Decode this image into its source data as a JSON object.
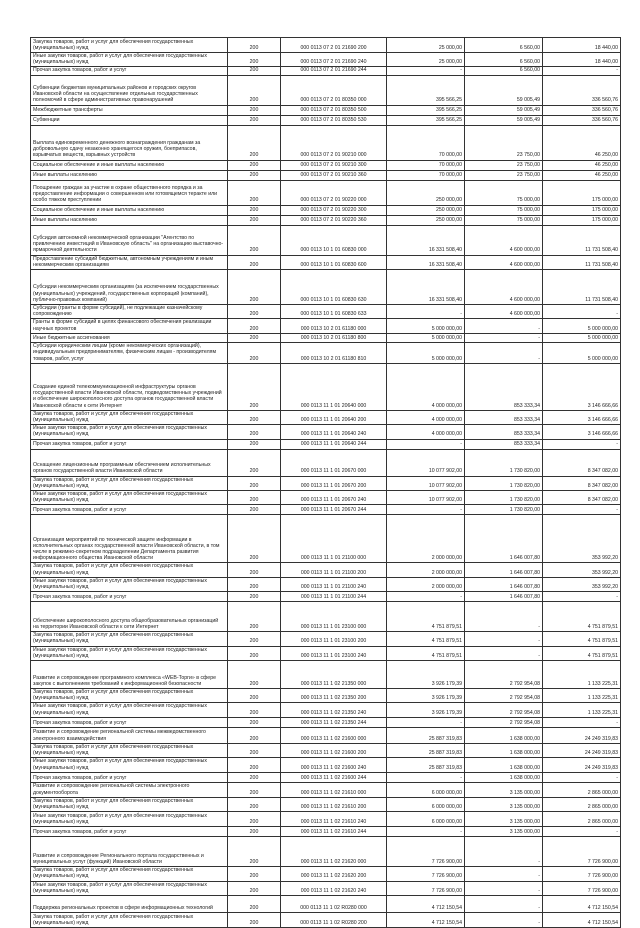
{
  "table": {
    "rows": [
      {
        "desc": "Закупка товаров, работ и услуг для обеспечения государственных (муниципальных) нужд",
        "code": "200",
        "kbk": "000 0113 07 2 01 21690 200",
        "v1": "25 000,00",
        "v2": "6 560,00",
        "v3": "18 440,00"
      },
      {
        "desc": "Иные закупки товаров, работ и услуг для обеспечения государственных (муниципальных) нужд",
        "code": "200",
        "kbk": "000 0113 07 2 01 21690 240",
        "v1": "25 000,00",
        "v2": "6 560,00",
        "v3": "18 440,00"
      },
      {
        "desc": "Прочая закупка товаров, работ и услуг",
        "code": "200",
        "kbk": "000 0113 07 2 01 21690 244",
        "v1": "-",
        "v2": "6 560,00",
        "v3": "-"
      },
      {
        "desc": "Субвенции бюджетам муниципальных районов и городских округов Ивановской области на осуществление отдельных государственных полномочий в сфере административных правонарушений",
        "code": "200",
        "kbk": "000 0113 07 2 01 80350 000",
        "v1": "395 566,25",
        "v2": "59 005,49",
        "v3": "336 560,76"
      },
      {
        "desc": "Межбюджетные трансферты",
        "code": "200",
        "kbk": "000 0113 07 2 01 80350 500",
        "v1": "395 566,25",
        "v2": "59 005,49",
        "v3": "336 560,76"
      },
      {
        "desc": "Субвенции",
        "code": "200",
        "kbk": "000 0113 07 2 01 80350 530",
        "v1": "395 566,25",
        "v2": "59 005,49",
        "v3": "336 560,76"
      },
      {
        "desc": "Выплата единовременного денежного вознаграждения гражданам за добровольную сдачу незаконно хранящегося оружия, боеприпасов, взрывчатых веществ, взрывных устройств",
        "code": "200",
        "kbk": "000 0113 07 2 01 90210 000",
        "v1": "70 000,00",
        "v2": "23 750,00",
        "v3": "46 250,00"
      },
      {
        "desc": "Социальное обеспечение и иные выплаты населению",
        "code": "200",
        "kbk": "000 0113 07 2 01 90210 300",
        "v1": "70 000,00",
        "v2": "23 750,00",
        "v3": "46 250,00"
      },
      {
        "desc": "Иные выплаты населению",
        "code": "200",
        "kbk": "000 0113 07 2 01 90210 360",
        "v1": "70 000,00",
        "v2": "23 750,00",
        "v3": "46 250,00"
      },
      {
        "desc": "Поощрение граждан за участие в охране общественного порядка и за предоставление информации о совершенном или готовящемся теракте или особо тяжком преступлении",
        "code": "200",
        "kbk": "000 0113 07 2 01 90220 000",
        "v1": "250 000,00",
        "v2": "75 000,00",
        "v3": "175 000,00"
      },
      {
        "desc": "Социальное обеспечение и иные выплаты населению",
        "code": "200",
        "kbk": "000 0113 07 2 01 90220 300",
        "v1": "250 000,00",
        "v2": "75 000,00",
        "v3": "175 000,00"
      },
      {
        "desc": "Иные выплаты населению",
        "code": "200",
        "kbk": "000 0113 07 2 01 90220 360",
        "v1": "250 000,00",
        "v2": "75 000,00",
        "v3": "175 000,00"
      },
      {
        "desc": "Субсидия автономной некоммерческой организации \"Агентство по привлечению инвестиций в Ивановскую область\" на организацию выставочно-ярмарочной деятельности",
        "code": "200",
        "kbk": "000 0113 10 1 01 60830 000",
        "v1": "16 331 508,40",
        "v2": "4 600 000,00",
        "v3": "11 731 508,40"
      },
      {
        "desc": "Предоставление субсидий бюджетным, автономным учреждениям и иным некоммерческим организациям",
        "code": "200",
        "kbk": "000 0113 10 1 01 60830 600",
        "v1": "16 331 508,40",
        "v2": "4 600 000,00",
        "v3": "11 731 508,40"
      },
      {
        "desc": "Субсидии некоммерческим организациям (за исключением государственных (муниципальных) учреждений, государственных корпораций (компаний), публично-правовых компаний)",
        "code": "200",
        "kbk": "000 0113 10 1 01 60830 630",
        "v1": "16 331 508,40",
        "v2": "4 600 000,00",
        "v3": "11 731 508,40"
      },
      {
        "desc": "Субсидии (гранты в форме субсидий), не подлежащие казначейскому сопровождению",
        "code": "200",
        "kbk": "000 0113 10 1 01 60830 633",
        "v1": "-",
        "v2": "4 600 000,00",
        "v3": "-"
      },
      {
        "desc": "Гранты в форме субсидий в целях финансового обеспечения реализации научных проектов",
        "code": "200",
        "kbk": "000 0113 10 2 01 61180 000",
        "v1": "5 000 000,00",
        "v2": "-",
        "v3": "5 000 000,00"
      },
      {
        "desc": "Иные бюджетные ассигнования",
        "code": "200",
        "kbk": "000 0113 10 2 01 61180 800",
        "v1": "5 000 000,00",
        "v2": "-",
        "v3": "5 000 000,00"
      },
      {
        "desc": "Субсидии юридическим лицам (кроме некоммерческих организаций), индивидуальным предпринимателям, физическим лицам - производителям товаров, работ, услуг",
        "code": "200",
        "kbk": "000 0113 10 2 01 61180 810",
        "v1": "5 000 000,00",
        "v2": "-",
        "v3": "5 000 000,00"
      },
      {
        "desc": "Создание единой телекоммуникационной инфраструктуры органов государственной власти Ивановской области, подведомственных учреждений и обеспечение широкополосного доступа органов государственной власти Ивановской области к сети Интернет",
        "code": "200",
        "kbk": "000 0113 11 1 01 20640 000",
        "v1": "4 000 000,00",
        "v2": "853 333,34",
        "v3": "3 146 666,66"
      },
      {
        "desc": "Закупка товаров, работ и услуг для обеспечения государственных (муниципальных) нужд",
        "code": "200",
        "kbk": "000 0113 11 1 01 20640 200",
        "v1": "4 000 000,00",
        "v2": "853 333,34",
        "v3": "3 146 666,66"
      },
      {
        "desc": "Иные закупки товаров, работ и услуг для обеспечения государственных (муниципальных) нужд",
        "code": "200",
        "kbk": "000 0113 11 1 01 20640 240",
        "v1": "4 000 000,00",
        "v2": "853 333,34",
        "v3": "3 146 666,66"
      },
      {
        "desc": "Прочая закупка товаров, работ и услуг",
        "code": "200",
        "kbk": "000 0113 11 1 01 20640 244",
        "v1": "-",
        "v2": "853 333,34",
        "v3": "-"
      },
      {
        "desc": "Оснащение лицензионным программным обеспечением исполнительных органов государственной власти Ивановской области",
        "code": "200",
        "kbk": "000 0113 11 1 01 20670 000",
        "v1": "10 077 902,00",
        "v2": "1 730 820,00",
        "v3": "8 347 082,00"
      },
      {
        "desc": "Закупка товаров, работ и услуг для обеспечения государственных (муниципальных) нужд",
        "code": "200",
        "kbk": "000 0113 11 1 01 20670 200",
        "v1": "10 077 902,00",
        "v2": "1 730 820,00",
        "v3": "8 347 082,00"
      },
      {
        "desc": "Иные закупки товаров, работ и услуг для обеспечения государственных (муниципальных) нужд",
        "code": "200",
        "kbk": "000 0113 11 1 01 20670 240",
        "v1": "10 077 902,00",
        "v2": "1 730 820,00",
        "v3": "8 347 082,00"
      },
      {
        "desc": "Прочая закупка товаров, работ и услуг",
        "code": "200",
        "kbk": "000 0113 11 1 01 20670 244",
        "v1": "-",
        "v2": "1 730 820,00",
        "v3": "-"
      },
      {
        "desc": "Организация мероприятий по технической защите информации в исполнительных органах государственной власти Ивановской области, в том числе в режимно-секретном подразделении Департамента развития информационного общества Ивановской области",
        "code": "200",
        "kbk": "000 0113 11 1 01 21100 000",
        "v1": "2 000 000,00",
        "v2": "1 646 007,80",
        "v3": "353 992,20"
      },
      {
        "desc": "Закупка товаров, работ и услуг для обеспечения государственных (муниципальных) нужд",
        "code": "200",
        "kbk": "000 0113 11 1 01 21100 200",
        "v1": "2 000 000,00",
        "v2": "1 646 007,80",
        "v3": "353 992,20"
      },
      {
        "desc": "Иные закупки товаров, работ и услуг для обеспечения государственных (муниципальных) нужд",
        "code": "200",
        "kbk": "000 0113 11 1 01 21100 240",
        "v1": "2 000 000,00",
        "v2": "1 646 007,80",
        "v3": "353 992,20"
      },
      {
        "desc": "Прочая закупка товаров, работ и услуг",
        "code": "200",
        "kbk": "000 0113 11 1 01 21100 244",
        "v1": "-",
        "v2": "1 646 007,80",
        "v3": "-"
      },
      {
        "desc": "Обеспечение широкополосного доступа общеобразовательных организаций на территории Ивановской области к сети Интернет",
        "code": "200",
        "kbk": "000 0113 11 1 01 23100 000",
        "v1": "4 751 879,51",
        "v2": "-",
        "v3": "4 751 879,51"
      },
      {
        "desc": "Закупка товаров, работ и услуг для обеспечения государственных (муниципальных) нужд",
        "code": "200",
        "kbk": "000 0113 11 1 01 23100 200",
        "v1": "4 751 879,51",
        "v2": "-",
        "v3": "4 751 879,51"
      },
      {
        "desc": "Иные закупки товаров, работ и услуг для обеспечения государственных (муниципальных) нужд",
        "code": "200",
        "kbk": "000 0113 11 1 01 23100 240",
        "v1": "4 751 879,51",
        "v2": "-",
        "v3": "4 751 879,51"
      },
      {
        "desc": "Развитие и сопровождение программного комплекса «WEB-Торги» в сфере закупок с выполнением требований к информационной безопасности",
        "code": "200",
        "kbk": "000 0113 11 1 02 21350 000",
        "v1": "3 926 179,39",
        "v2": "2 792 954,08",
        "v3": "1 133 225,31"
      },
      {
        "desc": "Закупка товаров, работ и услуг для обеспечения государственных (муниципальных) нужд",
        "code": "200",
        "kbk": "000 0113 11 1 02 21350 200",
        "v1": "3 926 179,39",
        "v2": "2 792 954,08",
        "v3": "1 133 225,31"
      },
      {
        "desc": "Иные закупки товаров, работ и услуг для обеспечения государственных (муниципальных) нужд",
        "code": "200",
        "kbk": "000 0113 11 1 02 21350 240",
        "v1": "3 926 179,39",
        "v2": "2 792 954,08",
        "v3": "1 133 225,31"
      },
      {
        "desc": "Прочая закупка товаров, работ и услуг",
        "code": "200",
        "kbk": "000 0113 11 1 02 21350 244",
        "v1": "-",
        "v2": "2 792 954,08",
        "v3": "-"
      },
      {
        "desc": "Развитие и сопровождение региональной системы межведомственного электронного взаимодействия",
        "code": "200",
        "kbk": "000 0113 11 1 02 21600 000",
        "v1": "25 887 319,83",
        "v2": "1 638 000,00",
        "v3": "24 249 319,83"
      },
      {
        "desc": "Закупка товаров, работ и услуг для обеспечения государственных (муниципальных) нужд",
        "code": "200",
        "kbk": "000 0113 11 1 02 21600 200",
        "v1": "25 887 319,83",
        "v2": "1 638 000,00",
        "v3": "24 249 319,83"
      },
      {
        "desc": "Иные закупки товаров, работ и услуг для обеспечения государственных (муниципальных) нужд",
        "code": "200",
        "kbk": "000 0113 11 1 02 21600 240",
        "v1": "25 887 319,83",
        "v2": "1 638 000,00",
        "v3": "24 249 319,83"
      },
      {
        "desc": "Прочая закупка товаров, работ и услуг",
        "code": "200",
        "kbk": "000 0113 11 1 02 21600 244",
        "v1": "-",
        "v2": "1 638 000,00",
        "v3": "-"
      },
      {
        "desc": "Развитие и сопровождение региональной системы электронного документооборота",
        "code": "200",
        "kbk": "000 0113 11 1 02 21610 000",
        "v1": "6 000 000,00",
        "v2": "3 135 000,00",
        "v3": "2 865 000,00"
      },
      {
        "desc": "Закупка товаров, работ и услуг для обеспечения государственных (муниципальных) нужд",
        "code": "200",
        "kbk": "000 0113 11 1 02 21610 200",
        "v1": "6 000 000,00",
        "v2": "3 135 000,00",
        "v3": "2 865 000,00"
      },
      {
        "desc": "Иные закупки товаров, работ и услуг для обеспечения государственных (муниципальных) нужд",
        "code": "200",
        "kbk": "000 0113 11 1 02 21610 240",
        "v1": "6 000 000,00",
        "v2": "3 135 000,00",
        "v3": "2 865 000,00"
      },
      {
        "desc": "Прочая закупка товаров, работ и услуг",
        "code": "200",
        "kbk": "000 0113 11 1 02 21610 244",
        "v1": "-",
        "v2": "3 135 000,00",
        "v3": "-"
      },
      {
        "desc": "Развитие и сопровождение Регионального портала государственных и муниципальных услуг (функций) Ивановской области",
        "code": "200",
        "kbk": "000 0113 11 1 02 21620 000",
        "v1": "7 726 900,00",
        "v2": "-",
        "v3": "7 726 900,00"
      },
      {
        "desc": "Закупка товаров, работ и услуг для обеспечения государственных (муниципальных) нужд",
        "code": "200",
        "kbk": "000 0113 11 1 02 21620 200",
        "v1": "7 726 900,00",
        "v2": "-",
        "v3": "7 726 900,00"
      },
      {
        "desc": "Иные закупки товаров, работ и услуг для обеспечения государственных (муниципальных) нужд",
        "code": "200",
        "kbk": "000 0113 11 1 02 21620 240",
        "v1": "7 726 900,00",
        "v2": "-",
        "v3": "7 726 900,00"
      },
      {
        "desc": "Поддержка региональных проектов в сфере информационных технологий",
        "code": "200",
        "kbk": "000 0113 11 1 02 R0280 000",
        "v1": "4 712 150,54",
        "v2": "-",
        "v3": "4 712 150,54"
      },
      {
        "desc": "Закупка товаров, работ и услуг для обеспечения государственных (муниципальных) нужд",
        "code": "200",
        "kbk": "000 0113 11 1 02 R0280 200",
        "v1": "4 712 150,54",
        "v2": "-",
        "v3": "4 712 150,54"
      }
    ]
  }
}
